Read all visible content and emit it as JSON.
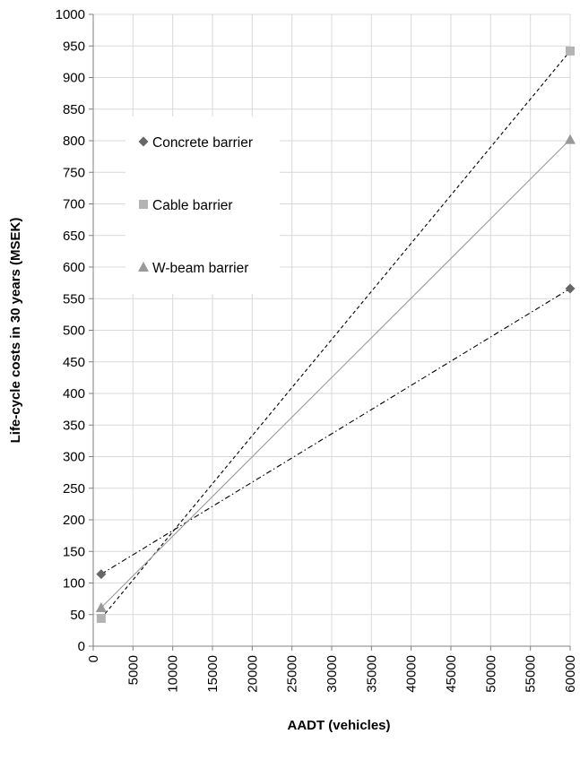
{
  "chart_data": {
    "type": "line",
    "title": "",
    "xlabel": "AADT (vehicles)",
    "ylabel": "Life-cycle costs in 30 years  (MSEK)",
    "xlim": [
      0,
      60000
    ],
    "ylim": [
      0,
      1000
    ],
    "x_ticks": [
      "0",
      "5000",
      "10000",
      "15000",
      "20000",
      "25000",
      "30000",
      "35000",
      "40000",
      "45000",
      "50000",
      "55000",
      "60000"
    ],
    "y_ticks": [
      "0",
      "50",
      "100",
      "150",
      "200",
      "250",
      "300",
      "350",
      "400",
      "450",
      "500",
      "550",
      "600",
      "650",
      "700",
      "750",
      "800",
      "850",
      "900",
      "950",
      "1000"
    ],
    "grid": true,
    "legend_position": "upper-left inside plot",
    "series": [
      {
        "name": "Concrete barrier",
        "marker": "diamond",
        "line_style": "dash-dot",
        "color": "#666666",
        "x": [
          1000,
          60000
        ],
        "y": [
          114,
          566
        ]
      },
      {
        "name": "Cable barrier",
        "marker": "square",
        "line_style": "dashed",
        "color": "#b3b3b3",
        "x": [
          1000,
          60000
        ],
        "y": [
          44,
          942
        ]
      },
      {
        "name": "W-beam barrier",
        "marker": "triangle",
        "line_style": "solid",
        "color": "#999999",
        "x": [
          1000,
          60000
        ],
        "y": [
          61,
          802
        ]
      }
    ]
  }
}
